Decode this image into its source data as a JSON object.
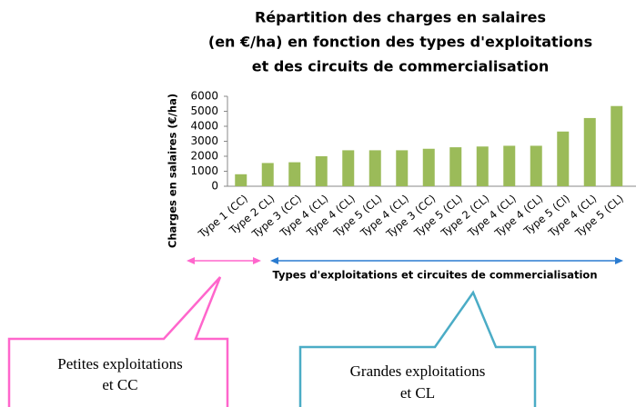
{
  "chart_data": {
    "type": "bar",
    "title": [
      "Répartition des charges en salaires",
      "(en €/ha) en fonction des types d'exploitations",
      "et des circuits de commercialisation"
    ],
    "y_label": "Charges en salaires (€/ha)",
    "x_label": "Types d'exploitations et circuites de commercialisation",
    "categories": [
      "Type 1 (CC)",
      "Type 2 CL)",
      "Type 3 (CC)",
      "Type 4 (CL)",
      "Type 4 (CL)",
      "Type 5 (CL)",
      "Type 4 (CL)",
      "Type 3 (CC)",
      "Type 5 (CL)",
      "Type 2 (CL)",
      "Type 4 (CL)",
      "Type 4 (CL)",
      "Type 5 (Cl)",
      "Type 4 (CL)",
      "Type 5 (CL)"
    ],
    "values": [
      800,
      1550,
      1600,
      2000,
      2400,
      2400,
      2400,
      2500,
      2600,
      2650,
      2700,
      2700,
      3650,
      4550,
      5350
    ],
    "color": "#9bbb59",
    "ylim": [
      0,
      6000
    ],
    "yticks": [
      0,
      1000,
      2000,
      3000,
      4000,
      5000,
      6000
    ],
    "grid": false,
    "annotations": [
      {
        "lines": [
          "Petites exploitations",
          "et CC"
        ],
        "color": "#ff66cc"
      },
      {
        "lines": [
          "Grandes exploitations",
          "et CL"
        ],
        "color": "#4bacc6"
      }
    ]
  }
}
